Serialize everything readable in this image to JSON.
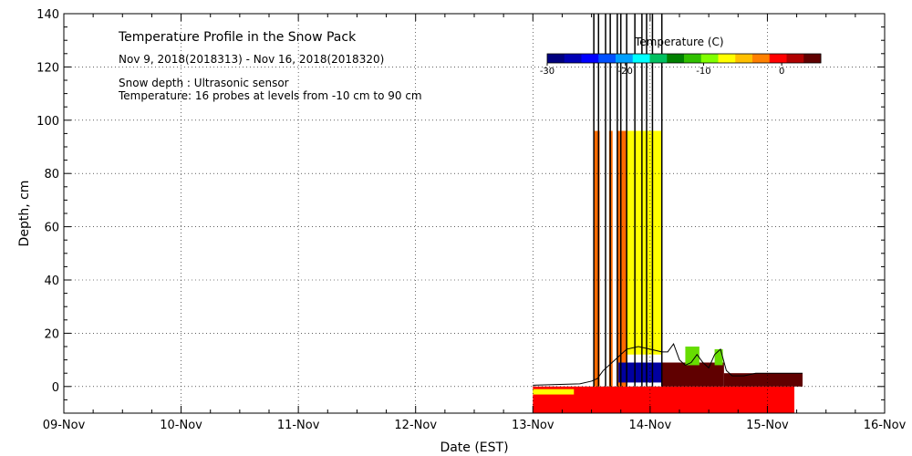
{
  "chart_data": {
    "type": "heatmap",
    "title": "Temperature Profile in the Snow Pack",
    "date_range": "Nov  9, 2018(2018313) - Nov 16, 2018(2018320)",
    "note_depth": "Snow depth : Ultrasonic sensor",
    "note_temp": "Temperature: 16 probes at levels from -10 cm to 90 cm",
    "xlabel": "Date (EST)",
    "ylabel": "Depth, cm",
    "x_ticks": [
      "09-Nov",
      "10-Nov",
      "11-Nov",
      "12-Nov",
      "13-Nov",
      "14-Nov",
      "15-Nov",
      "16-Nov"
    ],
    "x_range_days": [
      0,
      7
    ],
    "y_ticks": [
      "0",
      "20",
      "40",
      "60",
      "80",
      "100",
      "120",
      "140"
    ],
    "y_tick_values": [
      0,
      20,
      40,
      60,
      80,
      100,
      120,
      140
    ],
    "ylim": [
      -10,
      140
    ],
    "grid": true,
    "colorbar": {
      "label": "Temperature (C)",
      "range": [
        -30,
        5
      ],
      "ticks": [
        {
          "value": -30,
          "label": "-30"
        },
        {
          "value": -20,
          "label": "-20"
        },
        {
          "value": -10,
          "label": "-10"
        },
        {
          "value": 0,
          "label": "0"
        }
      ],
      "colors": [
        "#00007f",
        "#0000b4",
        "#0000ff",
        "#0050ff",
        "#00a0ff",
        "#00ffff",
        "#00c060",
        "#008000",
        "#30c000",
        "#80ff00",
        "#ffff00",
        "#ffc000",
        "#ff8000",
        "#ff0000",
        "#b00000",
        "#600000"
      ]
    },
    "regions": [
      {
        "name": "soil-layer",
        "color": "#ff0000",
        "x": [
          4.0,
          6.23
        ],
        "y": [
          -10,
          0
        ]
      },
      {
        "name": "near-surface-band",
        "color": "#ffff00",
        "x": [
          4.0,
          4.35
        ],
        "y": [
          -3,
          -1
        ]
      },
      {
        "name": "probe-column-orange",
        "color": "#ff6a00",
        "x": [
          4.52,
          4.57
        ],
        "y": [
          0,
          96
        ]
      },
      {
        "name": "probe-column-orange",
        "color": "#ff6a00",
        "x": [
          4.65,
          4.68
        ],
        "y": [
          0,
          96
        ]
      },
      {
        "name": "probe-column-orange",
        "color": "#ff6a00",
        "x": [
          4.72,
          4.8
        ],
        "y": [
          0,
          96
        ]
      },
      {
        "name": "probe-column-yellow",
        "color": "#ffff00",
        "x": [
          4.8,
          5.1
        ],
        "y": [
          12,
          96
        ]
      },
      {
        "name": "snow-cold-core",
        "color": "#0000a0",
        "x": [
          4.73,
          5.13
        ],
        "y": [
          1.5,
          9
        ]
      },
      {
        "name": "snow-warm-pack",
        "color": "#600000",
        "x": [
          5.1,
          5.63
        ],
        "y": [
          0,
          9
        ]
      },
      {
        "name": "snow-warm-pack",
        "color": "#600000",
        "x": [
          5.63,
          6.3
        ],
        "y": [
          0,
          5
        ]
      }
    ],
    "snow_depth": {
      "x": [
        4.0,
        4.4,
        4.5,
        4.55,
        4.6,
        4.7,
        4.8,
        4.9,
        5.0,
        5.1,
        5.15,
        5.2,
        5.25,
        5.3,
        5.35,
        5.4,
        5.45,
        5.5,
        5.55,
        5.6,
        5.65,
        5.7,
        5.8,
        5.9,
        6.0,
        6.1,
        6.2,
        6.3
      ],
      "y": [
        0.5,
        1,
        2,
        3,
        6,
        10,
        14,
        15,
        14,
        13,
        13,
        16,
        10,
        8,
        9,
        12,
        9,
        7,
        12,
        14,
        6,
        4,
        4,
        5,
        5,
        5,
        5,
        5
      ]
    },
    "vertical_trace_days": [
      4.52,
      4.56,
      4.62,
      4.66,
      4.72,
      4.75,
      4.8,
      4.87,
      4.93,
      4.97,
      5.02,
      5.1
    ],
    "green_patches": [
      {
        "x": [
          5.3,
          5.42
        ],
        "y": [
          8,
          15
        ]
      },
      {
        "x": [
          5.55,
          5.62
        ],
        "y": [
          8,
          14
        ]
      }
    ]
  }
}
